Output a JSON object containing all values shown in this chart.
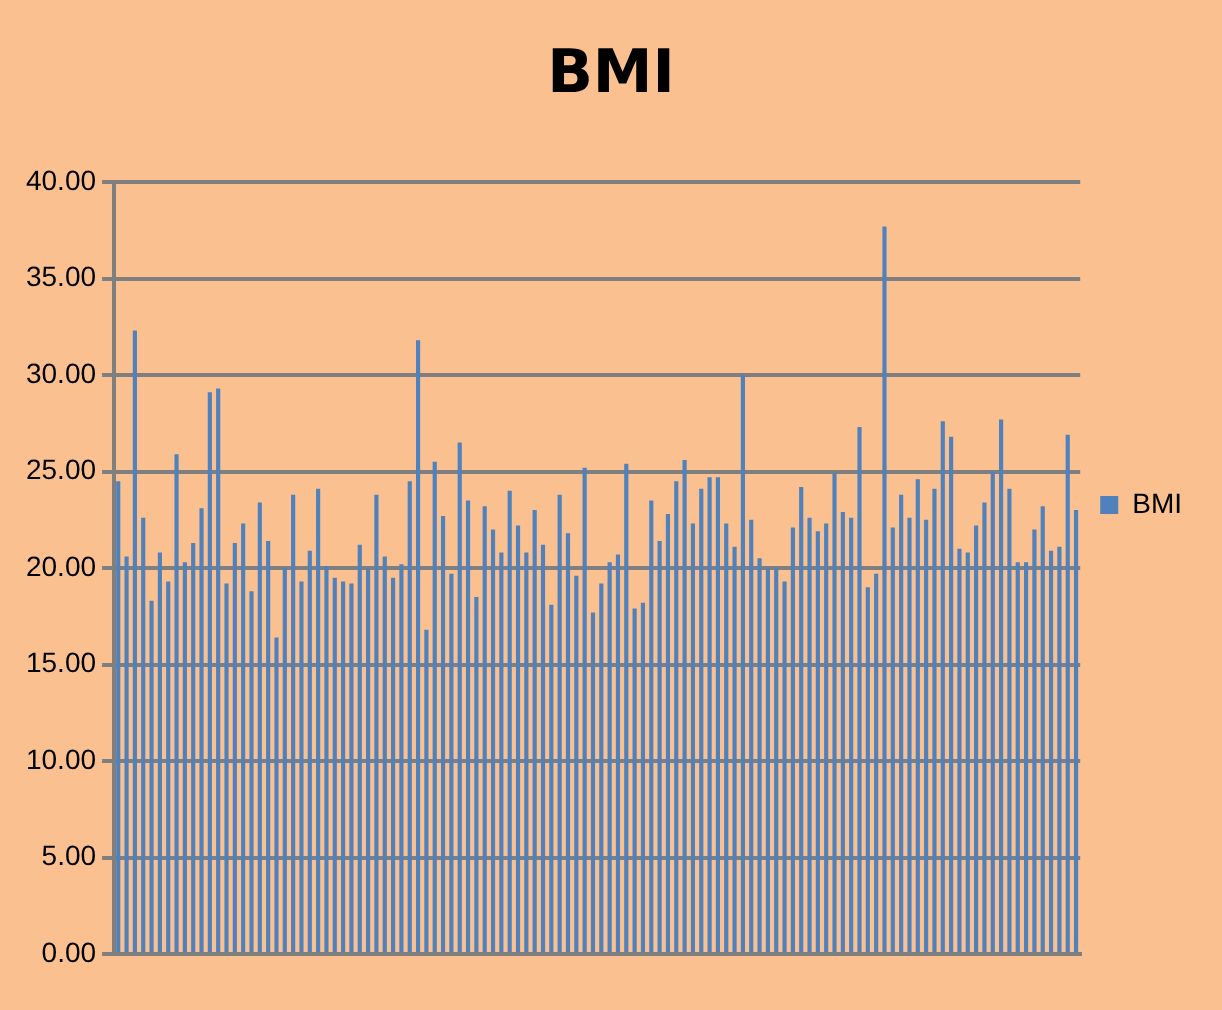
{
  "chart_data": {
    "type": "bar",
    "title": "BMI",
    "categories": [
      null,
      null,
      null,
      null,
      null,
      null,
      null,
      null,
      null,
      null,
      null,
      null,
      null,
      null,
      null,
      null,
      null,
      null,
      null,
      null,
      null,
      null,
      null,
      null,
      null,
      null,
      null,
      null,
      null,
      null,
      null,
      null,
      null,
      null,
      null,
      null,
      null,
      null,
      null,
      null,
      null,
      null,
      null,
      null,
      null,
      null,
      null,
      null,
      null,
      null,
      null,
      null,
      null,
      null,
      null,
      null,
      null,
      null,
      null,
      null,
      null,
      null,
      null,
      null,
      null,
      null,
      null,
      null,
      null,
      null,
      null,
      null,
      null,
      null,
      null,
      null,
      null,
      null,
      null,
      null,
      null,
      null,
      null,
      null,
      null,
      null,
      null,
      null,
      null,
      null,
      null,
      null,
      null,
      null,
      null,
      null,
      null,
      null,
      null,
      null,
      null,
      null,
      null,
      null,
      null,
      null,
      null,
      null,
      null,
      null,
      null,
      null,
      null,
      null,
      null,
      null
    ],
    "series": [
      {
        "name": "BMI",
        "color": "#4f81bd",
        "values": [
          24.5,
          20.6,
          32.3,
          22.6,
          18.3,
          20.8,
          19.3,
          25.9,
          20.3,
          21.3,
          23.1,
          29.1,
          29.3,
          19.2,
          21.3,
          22.3,
          18.8,
          23.4,
          21.4,
          16.4,
          20.0,
          23.8,
          19.3,
          20.9,
          24.1,
          20.1,
          19.5,
          19.3,
          19.2,
          21.2,
          20.0,
          23.8,
          20.6,
          19.5,
          20.2,
          24.5,
          31.8,
          16.8,
          25.5,
          22.7,
          19.7,
          26.5,
          23.5,
          18.5,
          23.2,
          22.0,
          20.8,
          24.0,
          22.2,
          20.8,
          23.0,
          21.2,
          18.1,
          23.8,
          21.8,
          19.6,
          25.2,
          17.7,
          19.2,
          20.3,
          20.7,
          25.4,
          17.9,
          18.2,
          23.5,
          21.4,
          22.8,
          24.5,
          25.6,
          22.3,
          24.1,
          24.7,
          24.7,
          22.3,
          21.1,
          30.0,
          22.5,
          20.5,
          20.0,
          20.0,
          19.3,
          22.1,
          24.2,
          22.6,
          21.9,
          22.3,
          24.9,
          22.9,
          22.6,
          27.3,
          19.0,
          19.7,
          37.7,
          22.1,
          23.8,
          22.6,
          24.6,
          22.5,
          24.1,
          27.6,
          26.8,
          21.0,
          20.8,
          22.2,
          23.4,
          25.0,
          27.7,
          24.1,
          20.3,
          20.3,
          22.0,
          23.2,
          20.9,
          21.1,
          26.9,
          23.0
        ]
      }
    ],
    "ylim": [
      0,
      40
    ],
    "yticks": [
      {
        "value": 0,
        "label": "0.00"
      },
      {
        "value": 5,
        "label": "5.00"
      },
      {
        "value": 10,
        "label": "10.00"
      },
      {
        "value": 15,
        "label": "15.00"
      },
      {
        "value": 20,
        "label": "20.00"
      },
      {
        "value": 25,
        "label": "25.00"
      },
      {
        "value": 30,
        "label": "30.00"
      },
      {
        "value": 35,
        "label": "35.00"
      },
      {
        "value": 40,
        "label": "40.00"
      }
    ],
    "grid": "y",
    "legend": "right",
    "tick_labels": "y"
  }
}
